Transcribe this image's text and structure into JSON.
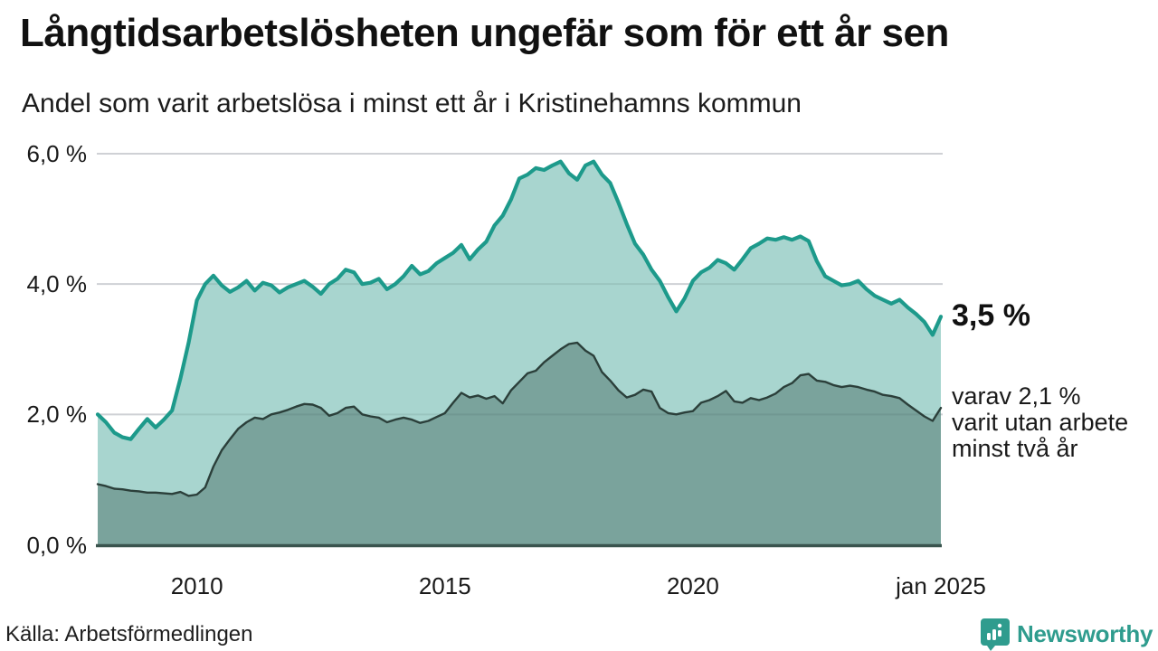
{
  "header": {
    "title": "Långtidsarbetslösheten ungefär som för ett år sen",
    "subtitle": "Andel som varit arbetslösa i minst ett år i Kristinehamns kommun"
  },
  "chart_data": {
    "type": "area",
    "title": "Långtidsarbetslösheten ungefär som för ett år sen",
    "subtitle": "Andel som varit arbetslösa i minst ett år i Kristinehamns kommun",
    "x_start": "2008-01",
    "x_end": "2025-01",
    "step_months": 2,
    "ylim": [
      0,
      6
    ],
    "grid": "horizontal",
    "legend_position": "right-annotations",
    "y_ticks": [
      {
        "value": 0,
        "label": "0,0 %"
      },
      {
        "value": 2,
        "label": "2,0 %"
      },
      {
        "value": 4,
        "label": "4,0 %"
      },
      {
        "value": 6,
        "label": "6,0 %"
      }
    ],
    "x_ticks": [
      {
        "point_index": 12,
        "label": "2010"
      },
      {
        "point_index": 42,
        "label": "2015"
      },
      {
        "point_index": 72,
        "label": "2020"
      },
      {
        "point_index": 102,
        "label": "jan 2025"
      }
    ],
    "series": [
      {
        "name": "Andel som varit arbetslösa minst ett år",
        "latest_label": "3,5 %",
        "color": "#1d9a8b",
        "fill": "#a8d5cf",
        "values": [
          2.0,
          1.88,
          1.72,
          1.65,
          1.62,
          1.78,
          1.93,
          1.8,
          1.92,
          2.06,
          2.55,
          3.1,
          3.75,
          4.0,
          4.13,
          3.98,
          3.88,
          3.95,
          4.05,
          3.9,
          4.02,
          3.98,
          3.87,
          3.95,
          4.0,
          4.05,
          3.96,
          3.85,
          4.0,
          4.08,
          4.22,
          4.18,
          4.0,
          4.02,
          4.08,
          3.92,
          4.0,
          4.12,
          4.28,
          4.15,
          4.2,
          4.32,
          4.4,
          4.48,
          4.6,
          4.38,
          4.53,
          4.65,
          4.9,
          5.05,
          5.3,
          5.62,
          5.68,
          5.78,
          5.75,
          5.82,
          5.88,
          5.7,
          5.6,
          5.82,
          5.88,
          5.68,
          5.55,
          5.25,
          4.92,
          4.62,
          4.45,
          4.22,
          4.05,
          3.8,
          3.58,
          3.78,
          4.05,
          4.18,
          4.25,
          4.37,
          4.32,
          4.22,
          4.38,
          4.55,
          4.62,
          4.7,
          4.68,
          4.72,
          4.68,
          4.73,
          4.66,
          4.35,
          4.12,
          4.05,
          3.98,
          4.0,
          4.05,
          3.92,
          3.82,
          3.76,
          3.7,
          3.76,
          3.64,
          3.54,
          3.42,
          3.22,
          3.5
        ]
      },
      {
        "name": "varav utan arbete minst två år",
        "latest_label": "2,1 %",
        "color": "#2b3f3a",
        "fill": "#7aa39c",
        "values": [
          0.93,
          0.9,
          0.86,
          0.85,
          0.83,
          0.82,
          0.8,
          0.8,
          0.79,
          0.78,
          0.81,
          0.75,
          0.77,
          0.88,
          1.2,
          1.45,
          1.62,
          1.78,
          1.88,
          1.95,
          1.93,
          2.0,
          2.03,
          2.07,
          2.12,
          2.16,
          2.15,
          2.1,
          1.98,
          2.02,
          2.1,
          2.12,
          2.0,
          1.97,
          1.95,
          1.88,
          1.92,
          1.95,
          1.92,
          1.87,
          1.9,
          1.96,
          2.02,
          2.18,
          2.33,
          2.26,
          2.29,
          2.24,
          2.28,
          2.17,
          2.37,
          2.5,
          2.63,
          2.67,
          2.8,
          2.9,
          3.0,
          3.08,
          3.1,
          2.98,
          2.9,
          2.65,
          2.52,
          2.37,
          2.26,
          2.3,
          2.38,
          2.35,
          2.1,
          2.02,
          2.0,
          2.03,
          2.05,
          2.18,
          2.22,
          2.28,
          2.36,
          2.2,
          2.18,
          2.25,
          2.22,
          2.26,
          2.32,
          2.42,
          2.48,
          2.6,
          2.62,
          2.52,
          2.5,
          2.45,
          2.42,
          2.44,
          2.42,
          2.38,
          2.35,
          2.3,
          2.28,
          2.25,
          2.15,
          2.06,
          1.97,
          1.9,
          2.1
        ]
      }
    ],
    "colors": {
      "gridline": "#e2e3e7",
      "baseline": "#3a544e",
      "accent_teal": "#1d9a8b"
    }
  },
  "annotations": {
    "latest_value": "3,5 %",
    "secondary_line1": "varav 2,1 %",
    "secondary_line2": "varit utan arbete",
    "secondary_line3": "minst två år"
  },
  "footer": {
    "source": "Källa: Arbetsförmedlingen",
    "brand": "Newsworthy"
  }
}
